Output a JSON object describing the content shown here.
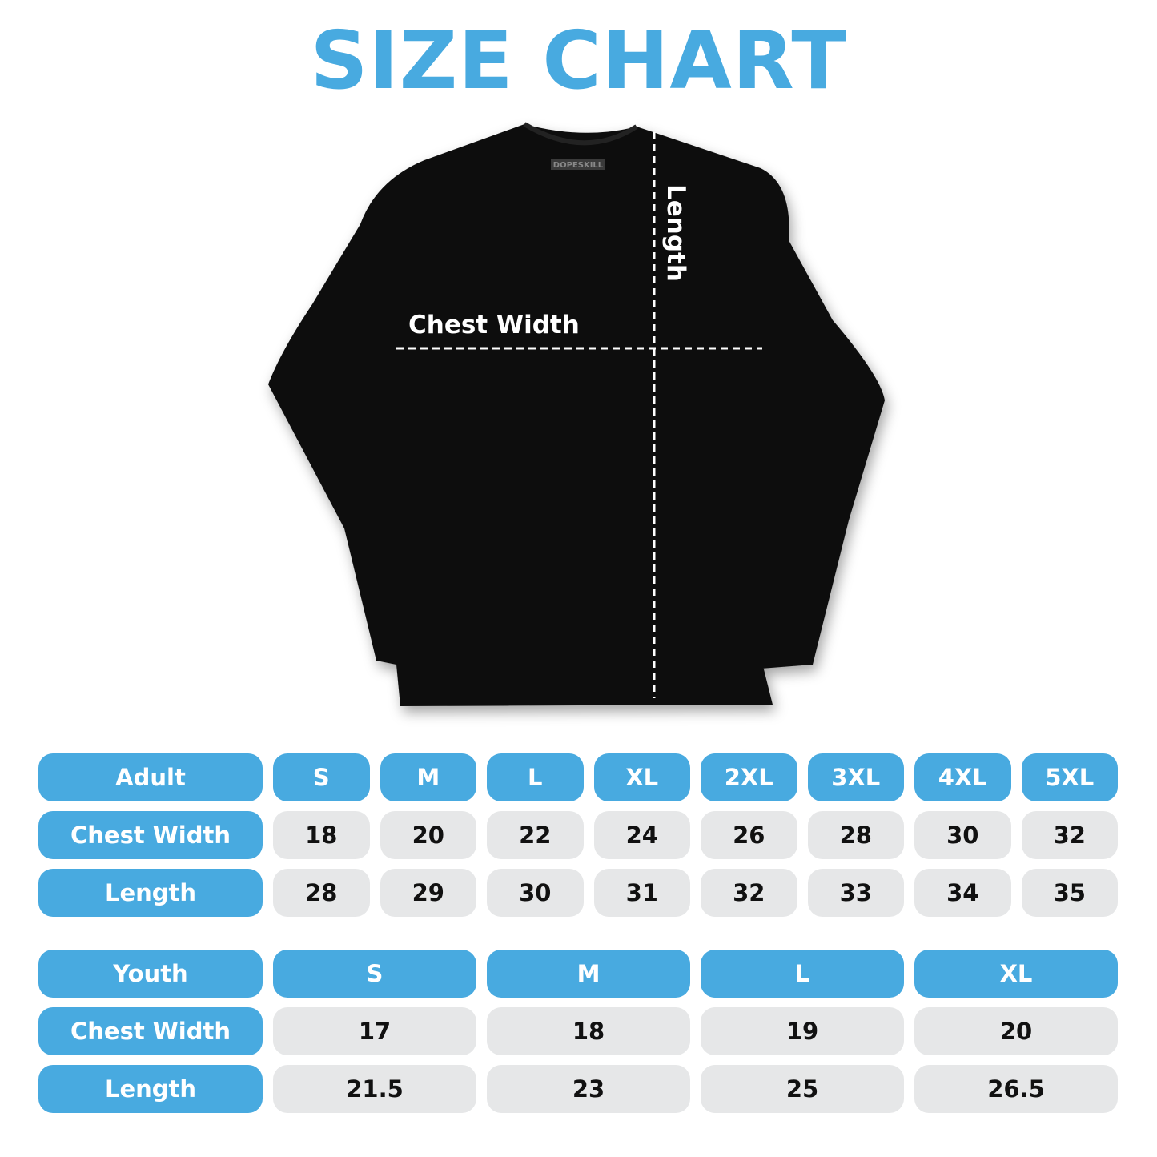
{
  "title": "SIZE CHART",
  "shirt": {
    "brand_tag": "DOPESKILL",
    "chest_label": "Chest Width",
    "length_label": "Length",
    "shirt_color": "#0d0d0d"
  },
  "colors": {
    "accent": "#48aae0",
    "cell": "#e6e7e8"
  },
  "adult": {
    "header": "Adult",
    "sizes": [
      "S",
      "M",
      "L",
      "XL",
      "2XL",
      "3XL",
      "4XL",
      "5XL"
    ],
    "rows": [
      {
        "label": "Chest Width",
        "values": [
          "18",
          "20",
          "22",
          "24",
          "26",
          "28",
          "30",
          "32"
        ]
      },
      {
        "label": "Length",
        "values": [
          "28",
          "29",
          "30",
          "31",
          "32",
          "33",
          "34",
          "35"
        ]
      }
    ]
  },
  "youth": {
    "header": "Youth",
    "sizes": [
      "S",
      "M",
      "L",
      "XL"
    ],
    "rows": [
      {
        "label": "Chest Width",
        "values": [
          "17",
          "18",
          "19",
          "20"
        ]
      },
      {
        "label": "Length",
        "values": [
          "21.5",
          "23",
          "25",
          "26.5"
        ]
      }
    ]
  }
}
